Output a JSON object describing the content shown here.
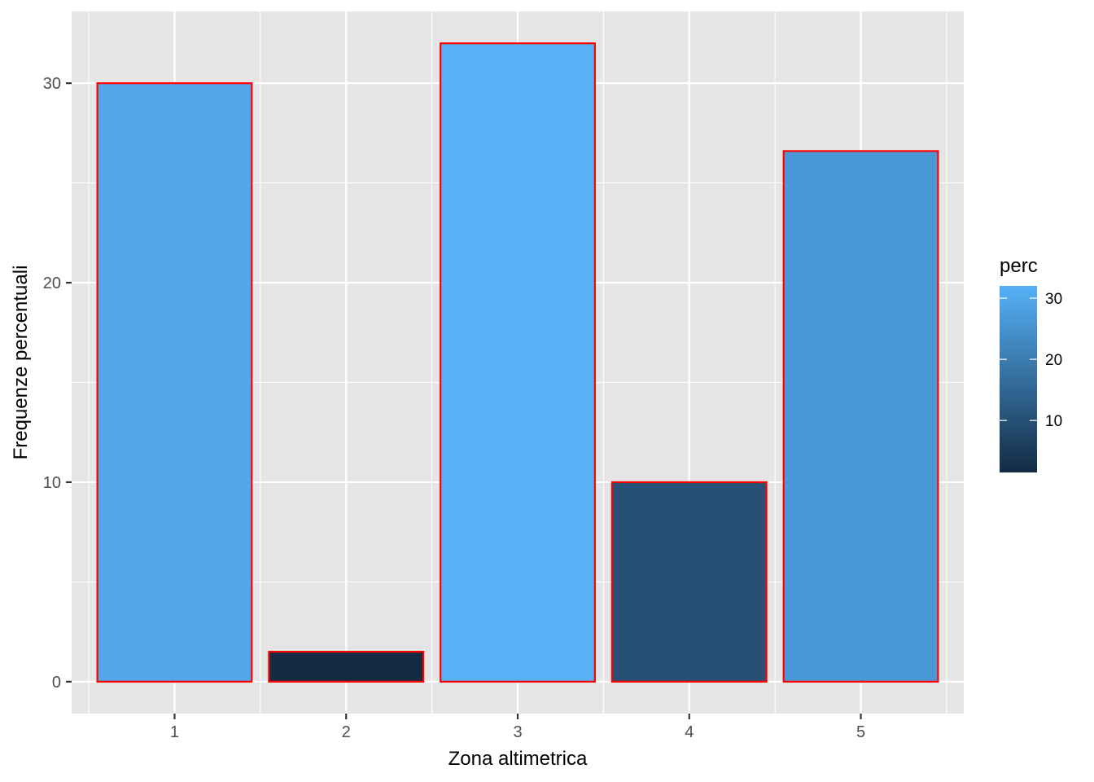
{
  "chart_data": {
    "type": "bar",
    "categories": [
      "1",
      "2",
      "3",
      "4",
      "5"
    ],
    "values": [
      30.0,
      1.5,
      32.0,
      10.0,
      26.6
    ],
    "xlabel": "Zona altimetrica",
    "ylabel": "Frequenze percentuali",
    "ylim": [
      -1.6,
      33.6
    ],
    "yticks": [
      0,
      10,
      20,
      30
    ],
    "grid": true,
    "bar_outline_color": "#ff0000",
    "panel_background": "#e5e5e5",
    "legend": {
      "title": "perc",
      "placement": "right",
      "type": "colorbar",
      "range": [
        1.5,
        32.0
      ],
      "ticks": [
        10,
        20,
        30
      ],
      "low_color": "#132b43",
      "high_color": "#56b1f7"
    }
  }
}
